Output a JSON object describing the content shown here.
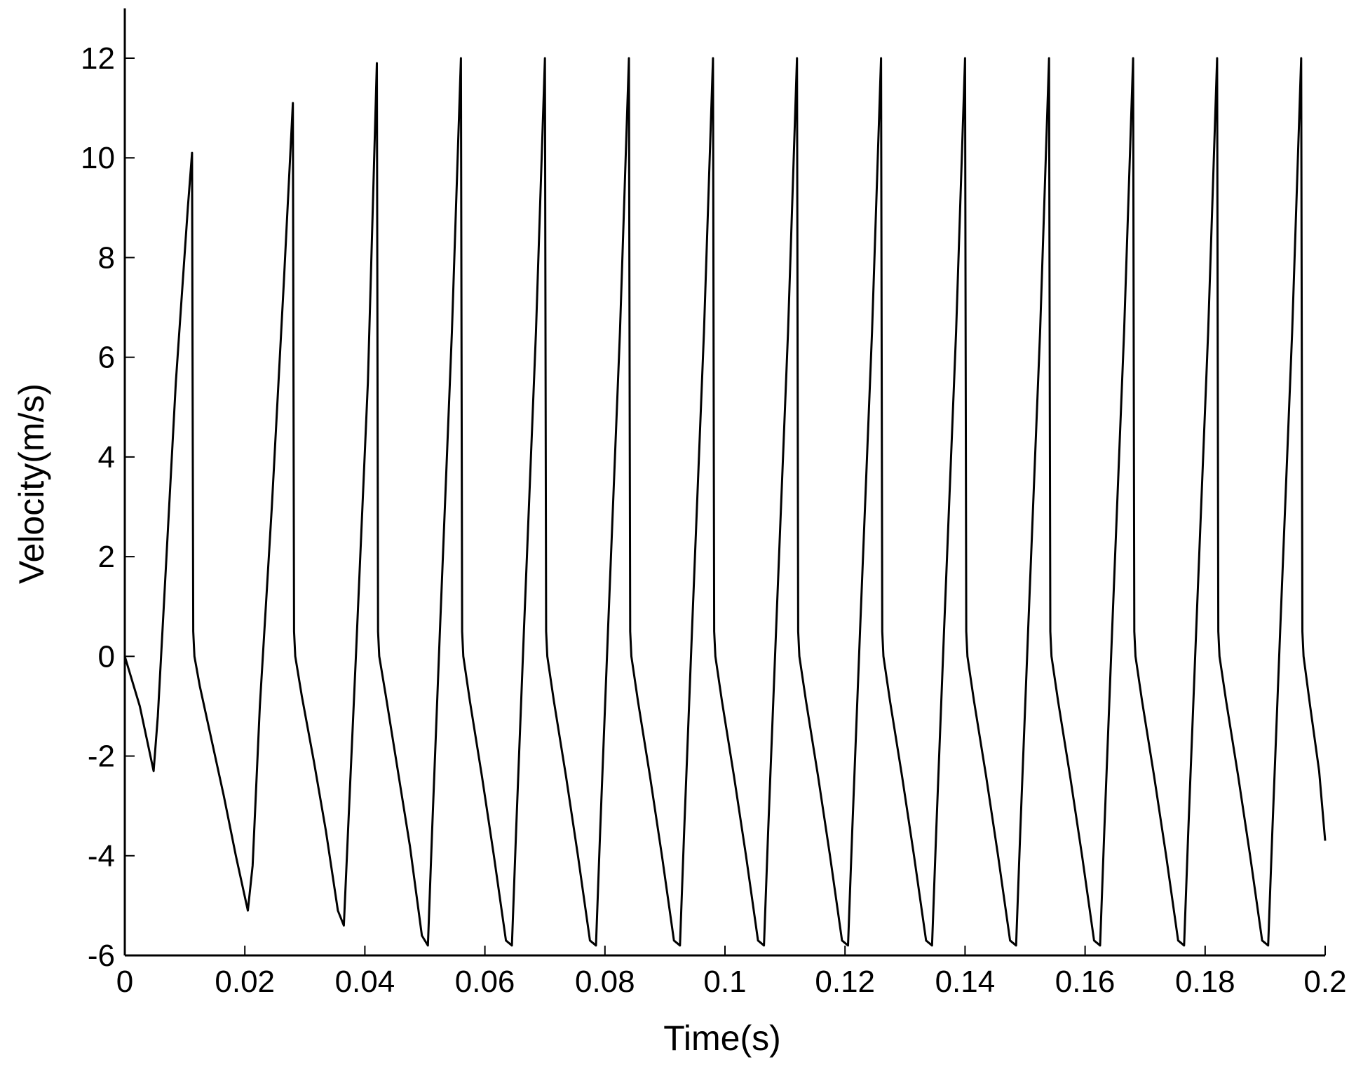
{
  "chart_data": {
    "type": "line",
    "title": "",
    "xlabel": "Time(s)",
    "ylabel": "Velocity(m/s)",
    "xlim": [
      0,
      0.2
    ],
    "ylim": [
      -6,
      12
    ],
    "x_ticks": [
      0,
      0.02,
      0.04,
      0.06,
      0.08,
      0.1,
      0.12,
      0.14,
      0.16,
      0.18,
      0.2
    ],
    "x_tick_labels": [
      "0",
      "0.02",
      "0.04",
      "0.06",
      "0.08",
      "0.1",
      "0.12",
      "0.14",
      "0.16",
      "0.18",
      "0.2"
    ],
    "y_ticks": [
      -6,
      -4,
      -2,
      0,
      2,
      4,
      6,
      8,
      10,
      12
    ],
    "y_tick_labels": [
      "-6",
      "-4",
      "-2",
      "0",
      "2",
      "4",
      "6",
      "8",
      "10",
      "12"
    ],
    "grid": false,
    "line_color": "#000000",
    "series": [
      {
        "x": [
          0,
          0.0025,
          0.0048,
          0.0055,
          0.0065,
          0.0085,
          0.0105,
          0.0112,
          0.0114,
          0.0116,
          0.0125,
          0.0145,
          0.0165,
          0.0185,
          0.0205,
          0.0213,
          0.0225,
          0.0245,
          0.0265,
          0.028,
          0.0282,
          0.0284,
          0.0295,
          0.0315,
          0.0335,
          0.0355,
          0.0365,
          0.0372,
          0.0385,
          0.0405,
          0.042,
          0.0422,
          0.0424,
          0.0435,
          0.0455,
          0.0475,
          0.0495,
          0.0505,
          0.0512,
          0.0525,
          0.0545,
          0.056,
          0.0562,
          0.0564,
          0.0575,
          0.0595,
          0.0615,
          0.0635,
          0.0645,
          0.0652,
          0.0665,
          0.0685,
          0.07,
          0.0702,
          0.0704,
          0.0715,
          0.0735,
          0.0755,
          0.0775,
          0.0785,
          0.0792,
          0.0805,
          0.0825,
          0.084,
          0.0842,
          0.0844,
          0.0855,
          0.0875,
          0.0895,
          0.0915,
          0.0925,
          0.0932,
          0.0945,
          0.0965,
          0.098,
          0.0982,
          0.0984,
          0.0995,
          0.1015,
          0.1035,
          0.1055,
          0.1065,
          0.1072,
          0.1085,
          0.1105,
          0.112,
          0.1122,
          0.1124,
          0.1135,
          0.1155,
          0.1175,
          0.1195,
          0.1205,
          0.1212,
          0.1225,
          0.1245,
          0.126,
          0.1262,
          0.1264,
          0.1275,
          0.1295,
          0.1315,
          0.1335,
          0.1345,
          0.1352,
          0.1365,
          0.1385,
          0.14,
          0.1402,
          0.1404,
          0.1415,
          0.1435,
          0.1455,
          0.1475,
          0.1485,
          0.1492,
          0.1505,
          0.1525,
          0.154,
          0.1542,
          0.1544,
          0.1555,
          0.1575,
          0.1595,
          0.1615,
          0.1625,
          0.1632,
          0.1645,
          0.1665,
          0.168,
          0.1682,
          0.1684,
          0.1695,
          0.1715,
          0.1735,
          0.1755,
          0.1765,
          0.1772,
          0.1785,
          0.1805,
          0.182,
          0.1822,
          0.1824,
          0.1835,
          0.1855,
          0.1875,
          0.1895,
          0.1905,
          0.1912,
          0.1925,
          0.1945,
          0.196,
          0.1962,
          0.1964,
          0.1975,
          0.199,
          0.2
        ],
        "y": [
          0,
          -1.0,
          -2.3,
          -1.2,
          1.0,
          5.5,
          9.0,
          10.1,
          0.5,
          0.0,
          -0.6,
          -1.7,
          -2.8,
          -4.0,
          -5.1,
          -4.2,
          -1.0,
          3.0,
          7.5,
          11.1,
          0.5,
          0.0,
          -0.8,
          -2.1,
          -3.5,
          -5.1,
          -5.4,
          -3.5,
          0.0,
          5.5,
          11.9,
          0.5,
          0.0,
          -0.8,
          -2.3,
          -3.8,
          -5.6,
          -5.8,
          -3.5,
          0.5,
          6.5,
          12.0,
          0.5,
          0.0,
          -0.9,
          -2.4,
          -4.0,
          -5.7,
          -5.8,
          -3.5,
          0.5,
          6.5,
          12.0,
          0.5,
          0.0,
          -0.9,
          -2.4,
          -4.0,
          -5.7,
          -5.8,
          -3.5,
          0.5,
          6.5,
          12.0,
          0.5,
          0.0,
          -0.9,
          -2.4,
          -4.0,
          -5.7,
          -5.8,
          -3.5,
          0.5,
          6.5,
          12.0,
          0.5,
          0.0,
          -0.9,
          -2.4,
          -4.0,
          -5.7,
          -5.8,
          -3.5,
          0.5,
          6.5,
          12.0,
          0.5,
          0.0,
          -0.9,
          -2.4,
          -4.0,
          -5.7,
          -5.8,
          -3.5,
          0.5,
          6.5,
          12.0,
          0.5,
          0.0,
          -0.9,
          -2.4,
          -4.0,
          -5.7,
          -5.8,
          -3.5,
          0.5,
          6.5,
          12.0,
          0.5,
          0.0,
          -0.9,
          -2.4,
          -4.0,
          -5.7,
          -5.8,
          -3.5,
          0.5,
          6.5,
          12.0,
          0.5,
          0.0,
          -0.9,
          -2.4,
          -4.0,
          -5.7,
          -5.8,
          -3.5,
          0.5,
          6.5,
          12.0,
          0.5,
          0.0,
          -0.9,
          -2.4,
          -4.0,
          -5.7,
          -5.8,
          -3.5,
          0.5,
          6.5,
          12.0,
          0.5,
          0.0,
          -0.9,
          -2.4,
          -4.0,
          -5.7,
          -5.8,
          -3.5,
          0.5,
          6.5,
          12.0,
          0.5,
          0.0,
          -1.0,
          -2.3,
          -3.7
        ]
      }
    ]
  }
}
